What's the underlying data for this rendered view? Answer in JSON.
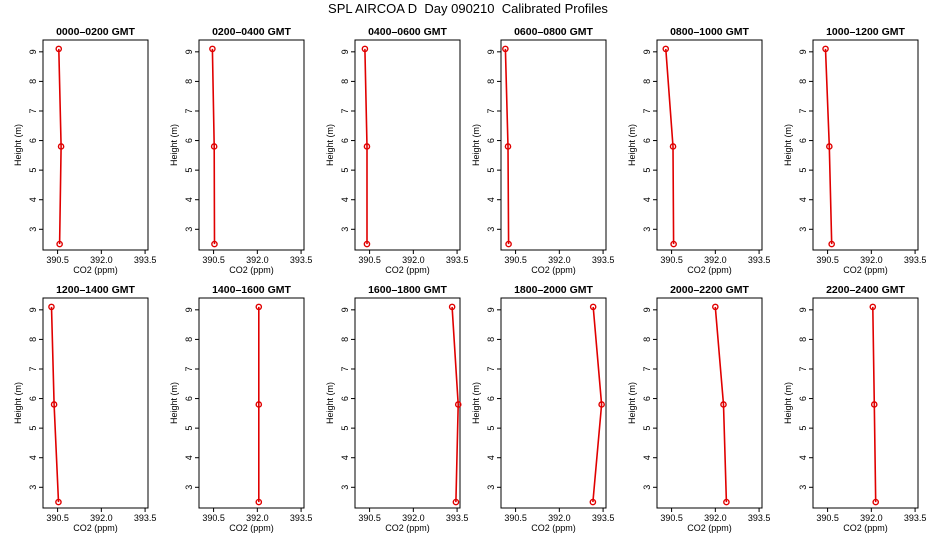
{
  "title": "SPL AIRCOA D  Day 090210  Calibrated Profiles",
  "colors": {
    "series": "#e00000",
    "axis": "#000000"
  },
  "chart_data": [
    {
      "type": "line",
      "title": "0000–0200 GMT",
      "xlabel": "CO2 (ppm)",
      "ylabel": "Height (m)",
      "xlim": [
        390.0,
        393.6
      ],
      "ylim": [
        2.3,
        9.4
      ],
      "xticks": [
        "390.5",
        "392.0",
        "393.5"
      ],
      "yticks": [
        "3",
        "4",
        "5",
        "6",
        "7",
        "8",
        "9"
      ],
      "series": [
        {
          "x": [
            390.54,
            390.62,
            390.57
          ],
          "y": [
            9.1,
            5.8,
            2.5
          ]
        }
      ]
    },
    {
      "type": "line",
      "title": "0200–0400 GMT",
      "xlabel": "CO2 (ppm)",
      "ylabel": "Height (m)",
      "xlim": [
        390.0,
        393.6
      ],
      "ylim": [
        2.3,
        9.4
      ],
      "xticks": [
        "390.5",
        "392.0",
        "393.5"
      ],
      "yticks": [
        "3",
        "4",
        "5",
        "6",
        "7",
        "8",
        "9"
      ],
      "series": [
        {
          "x": [
            390.46,
            390.52,
            390.53
          ],
          "y": [
            9.1,
            5.8,
            2.5
          ]
        }
      ]
    },
    {
      "type": "line",
      "title": "0400–0600 GMT",
      "xlabel": "CO2 (ppm)",
      "ylabel": "Height (m)",
      "xlim": [
        390.0,
        393.6
      ],
      "ylim": [
        2.3,
        9.4
      ],
      "xticks": [
        "390.5",
        "392.0",
        "393.5"
      ],
      "yticks": [
        "3",
        "4",
        "5",
        "6",
        "7",
        "8",
        "9"
      ],
      "series": [
        {
          "x": [
            390.34,
            390.41,
            390.41
          ],
          "y": [
            9.1,
            5.8,
            2.5
          ]
        }
      ]
    },
    {
      "type": "line",
      "title": "0600–0800 GMT",
      "xlabel": "CO2 (ppm)",
      "ylabel": "Height (m)",
      "xlim": [
        390.0,
        393.6
      ],
      "ylim": [
        2.3,
        9.4
      ],
      "xticks": [
        "390.5",
        "392.0",
        "393.5"
      ],
      "yticks": [
        "3",
        "4",
        "5",
        "6",
        "7",
        "8",
        "9"
      ],
      "series": [
        {
          "x": [
            390.15,
            390.24,
            390.26
          ],
          "y": [
            9.1,
            5.8,
            2.5
          ]
        }
      ]
    },
    {
      "type": "line",
      "title": "0800–1000 GMT",
      "xlabel": "CO2 (ppm)",
      "ylabel": "Height (m)",
      "xlim": [
        390.0,
        393.6
      ],
      "ylim": [
        2.3,
        9.4
      ],
      "xticks": [
        "390.5",
        "392.0",
        "393.5"
      ],
      "yticks": [
        "3",
        "4",
        "5",
        "6",
        "7",
        "8",
        "9"
      ],
      "series": [
        {
          "x": [
            390.3,
            390.55,
            390.57
          ],
          "y": [
            9.1,
            5.8,
            2.5
          ]
        }
      ]
    },
    {
      "type": "line",
      "title": "1000–1200 GMT",
      "xlabel": "CO2 (ppm)",
      "ylabel": "Height (m)",
      "xlim": [
        390.0,
        393.6
      ],
      "ylim": [
        2.3,
        9.4
      ],
      "xticks": [
        "390.5",
        "392.0",
        "393.5"
      ],
      "yticks": [
        "3",
        "4",
        "5",
        "6",
        "7",
        "8",
        "9"
      ],
      "series": [
        {
          "x": [
            390.43,
            390.56,
            390.64
          ],
          "y": [
            9.1,
            5.8,
            2.5
          ]
        }
      ]
    },
    {
      "type": "line",
      "title": "1200–1400 GMT",
      "xlabel": "CO2 (ppm)",
      "ylabel": "Height (m)",
      "xlim": [
        390.0,
        393.6
      ],
      "ylim": [
        2.3,
        9.4
      ],
      "xticks": [
        "390.5",
        "392.0",
        "393.5"
      ],
      "yticks": [
        "3",
        "4",
        "5",
        "6",
        "7",
        "8",
        "9"
      ],
      "series": [
        {
          "x": [
            390.29,
            390.38,
            390.53
          ],
          "y": [
            9.1,
            5.8,
            2.5
          ]
        }
      ]
    },
    {
      "type": "line",
      "title": "1400–1600 GMT",
      "xlabel": "CO2 (ppm)",
      "ylabel": "Height (m)",
      "xlim": [
        390.0,
        393.6
      ],
      "ylim": [
        2.3,
        9.4
      ],
      "xticks": [
        "390.5",
        "392.0",
        "393.5"
      ],
      "yticks": [
        "3",
        "4",
        "5",
        "6",
        "7",
        "8",
        "9"
      ],
      "series": [
        {
          "x": [
            392.05,
            392.05,
            392.05
          ],
          "y": [
            9.1,
            5.8,
            2.5
          ]
        }
      ]
    },
    {
      "type": "line",
      "title": "1600–1800 GMT",
      "xlabel": "CO2 (ppm)",
      "ylabel": "Height (m)",
      "xlim": [
        390.0,
        393.6
      ],
      "ylim": [
        2.3,
        9.4
      ],
      "xticks": [
        "390.5",
        "392.0",
        "393.5"
      ],
      "yticks": [
        "3",
        "4",
        "5",
        "6",
        "7",
        "8",
        "9"
      ],
      "series": [
        {
          "x": [
            393.33,
            393.54,
            393.46
          ],
          "y": [
            9.1,
            5.8,
            2.5
          ]
        }
      ]
    },
    {
      "type": "line",
      "title": "1800–2000 GMT",
      "xlabel": "CO2 (ppm)",
      "ylabel": "Height (m)",
      "xlim": [
        390.0,
        393.6
      ],
      "ylim": [
        2.3,
        9.4
      ],
      "xticks": [
        "390.5",
        "392.0",
        "393.5"
      ],
      "yticks": [
        "3",
        "4",
        "5",
        "6",
        "7",
        "8",
        "9"
      ],
      "series": [
        {
          "x": [
            393.16,
            393.45,
            393.15
          ],
          "y": [
            9.1,
            5.8,
            2.5
          ]
        }
      ]
    },
    {
      "type": "line",
      "title": "2000–2200 GMT",
      "xlabel": "CO2 (ppm)",
      "ylabel": "Height (m)",
      "xlim": [
        390.0,
        393.6
      ],
      "ylim": [
        2.3,
        9.4
      ],
      "xticks": [
        "390.5",
        "392.0",
        "393.5"
      ],
      "yticks": [
        "3",
        "4",
        "5",
        "6",
        "7",
        "8",
        "9"
      ],
      "series": [
        {
          "x": [
            392.0,
            392.28,
            392.38
          ],
          "y": [
            9.1,
            5.8,
            2.5
          ]
        }
      ]
    },
    {
      "type": "line",
      "title": "2200–2400 GMT",
      "xlabel": "CO2 (ppm)",
      "ylabel": "Height (m)",
      "xlim": [
        390.0,
        393.6
      ],
      "ylim": [
        2.3,
        9.4
      ],
      "xticks": [
        "390.5",
        "392.0",
        "393.5"
      ],
      "yticks": [
        "3",
        "4",
        "5",
        "6",
        "7",
        "8",
        "9"
      ],
      "series": [
        {
          "x": [
            392.05,
            392.1,
            392.15
          ],
          "y": [
            9.1,
            5.8,
            2.5
          ]
        }
      ]
    }
  ]
}
